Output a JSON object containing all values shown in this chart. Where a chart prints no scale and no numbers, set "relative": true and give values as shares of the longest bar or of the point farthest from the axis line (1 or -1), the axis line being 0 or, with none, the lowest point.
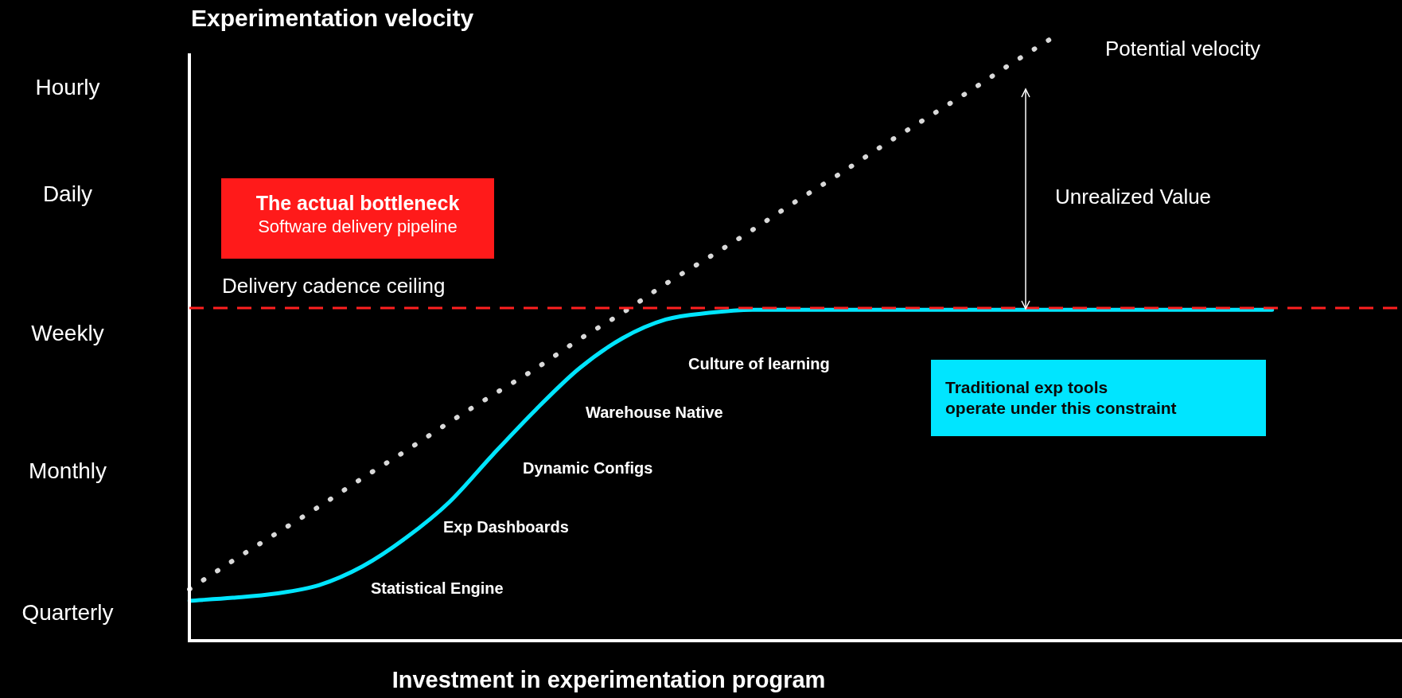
{
  "chart_data": {
    "type": "line",
    "title": "Experimentation velocity",
    "xlabel": "Investment in experimentation program",
    "relative": true,
    "categories": [
      null,
      null,
      null,
      null,
      null,
      null,
      null,
      null,
      null,
      null,
      null,
      null,
      null,
      null,
      null,
      null,
      null,
      null,
      null,
      null,
      null,
      null,
      null,
      null,
      null,
      null,
      null,
      null,
      null
    ],
    "series": [
      {
        "name": "Potential velocity",
        "color": "#d9d9d9",
        "line_style": "dotted",
        "values": [
          0.085,
          0.132,
          0.177,
          0.222,
          0.269,
          0.314,
          0.361,
          0.406,
          0.45,
          0.498,
          0.542,
          0.59,
          0.634,
          0.679,
          0.726,
          0.771,
          0.818,
          0.863,
          0.908,
          0.955,
          1,
          null,
          null,
          null,
          null,
          null,
          null,
          null,
          null
        ]
      },
      {
        "color": "#00e5ff",
        "line_style": "solid",
        "values": [
          0.066,
          0.071,
          0.078,
          0.092,
          0.123,
          0.17,
          0.229,
          0.307,
          0.382,
          0.45,
          0.5,
          0.531,
          0.542,
          0.547,
          0.547,
          0.547,
          0.547,
          0.547,
          0.547,
          0.547,
          0.547,
          0.547,
          0.547,
          0.547,
          0.547,
          0.547,
          null,
          null,
          null
        ]
      }
    ],
    "tick_labels": false,
    "legend": false,
    "marker": "none",
    "ref_lines": [
      {
        "axis": "y",
        "value": 0.55,
        "label": "Delivery cadence ceiling",
        "color": "#ff2020",
        "line_style": "dashed"
      }
    ],
    "annotations": [
      "The actual bottleneck",
      "Software delivery pipeline",
      "Statistical Engine",
      "Exp Dashboards",
      "Dynamic Configs",
      "Warehouse Native",
      "Culture of learning",
      "Traditional exp tools",
      "operate under this constraint",
      "Unrealized Value",
      "Hourly",
      "Daily",
      "Weekly",
      "Monthly",
      "Quarterly"
    ]
  }
}
